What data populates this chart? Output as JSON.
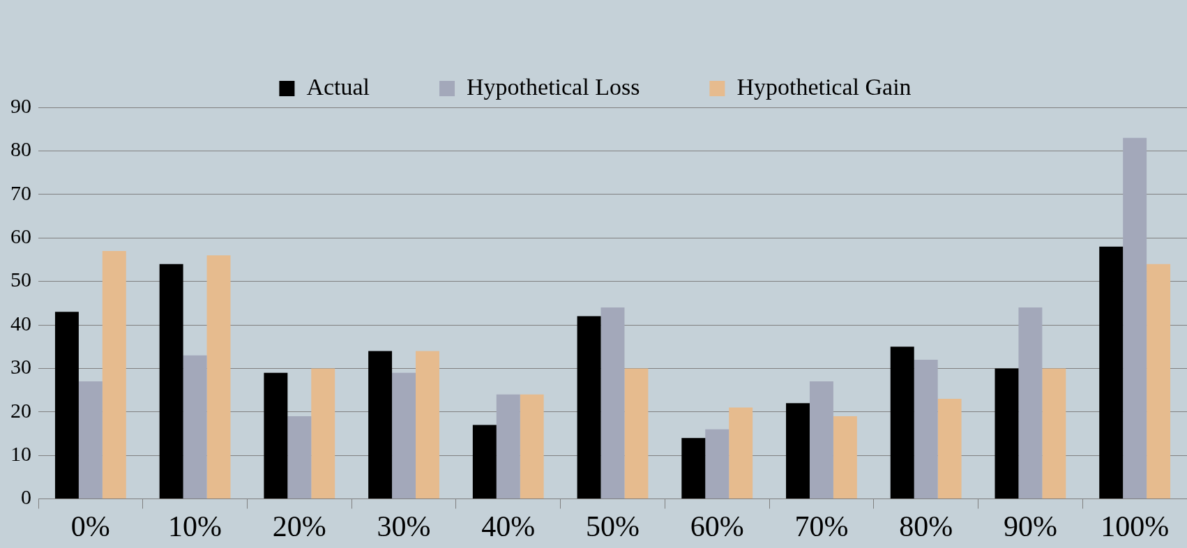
{
  "chart_data": {
    "type": "bar",
    "categories": [
      "0%",
      "10%",
      "20%",
      "30%",
      "40%",
      "50%",
      "60%",
      "70%",
      "80%",
      "90%",
      "100%"
    ],
    "series": [
      {
        "name": "Actual",
        "color": "#000000",
        "values": [
          43,
          54,
          29,
          34,
          17,
          42,
          14,
          22,
          35,
          30,
          58
        ]
      },
      {
        "name": "Hypothetical Loss",
        "color": "#a3a8ba",
        "values": [
          27,
          33,
          19,
          29,
          24,
          44,
          16,
          27,
          32,
          44,
          83
        ]
      },
      {
        "name": "Hypothetical Gain",
        "color": "#e6bb8e",
        "values": [
          57,
          56,
          30,
          34,
          24,
          30,
          21,
          19,
          23,
          30,
          54
        ]
      }
    ],
    "ylim": [
      0,
      90
    ],
    "yticks": [
      0,
      10,
      20,
      30,
      40,
      50,
      60,
      70,
      80,
      90
    ],
    "grid": "y",
    "legend": "top"
  }
}
